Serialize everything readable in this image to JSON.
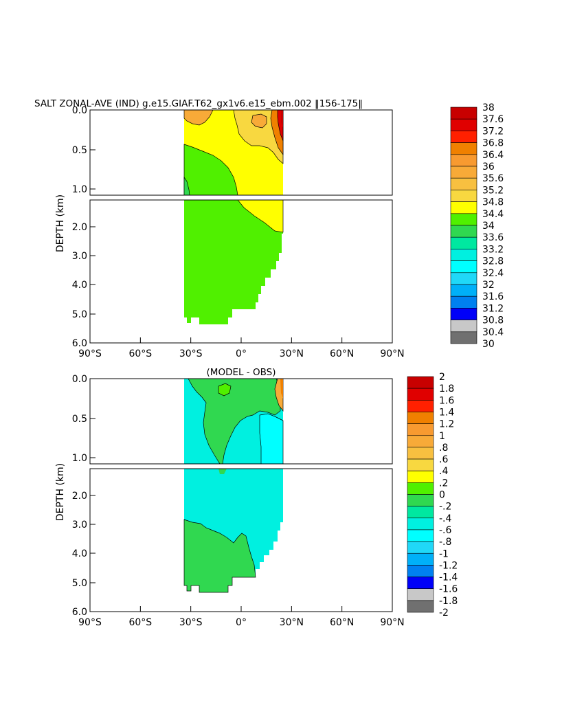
{
  "chart_data": [
    {
      "type": "heatmap",
      "title": "SALT ZONAL-AVE (IND) g.e15.GIAF.T62_gx1v6.e15_ebm.002 ‖156-175‖",
      "ylabel": "DEPTH (km)",
      "x_ticks": [
        "90°S",
        "60°S",
        "30°S",
        "0°",
        "30°N",
        "60°N",
        "90°N"
      ],
      "y_ticks_upper": [
        "0.0",
        "0.5",
        "1.0"
      ],
      "y_ticks_lower": [
        "2.0",
        "3.0",
        "4.0",
        "5.0",
        "6.0"
      ],
      "xlim": [
        -90,
        90
      ],
      "ylim_km": [
        0,
        6
      ],
      "colorbar_labels": [
        "38",
        "37.6",
        "37.2",
        "36.8",
        "36.4",
        "36",
        "35.6",
        "35.2",
        "34.8",
        "34.4",
        "34",
        "33.6",
        "33.2",
        "32.8",
        "32.4",
        "32",
        "31.6",
        "31.2",
        "30.8",
        "30.4",
        "30"
      ],
      "colorbar_colors": [
        "#c80000",
        "#e00000",
        "#ff2000",
        "#f08000",
        "#f89a30",
        "#f8aa38",
        "#f8c040",
        "#f8d840",
        "#ffff00",
        "#50f000",
        "#30d850",
        "#00e8a0",
        "#00f0e0",
        "#00ffff",
        "#20d8f8",
        "#00b0f8",
        "#0080f0",
        "#0000f8",
        "#9010d8",
        "#e800d8",
        "#c8c8c8",
        "#707070"
      ],
      "regions": [
        {
          "band": "upper",
          "value_range": "35.2-34.8",
          "color": "#ffff00",
          "lat_range": [
            -34,
            25
          ],
          "depth_km": [
            0,
            1.1
          ]
        },
        {
          "band": "upper",
          "value_range": "35.6-35.2",
          "color": "#f8d840",
          "lat_range": [
            -2,
            25
          ],
          "depth_km": [
            0,
            0.5
          ]
        },
        {
          "band": "upper",
          "value_range": "36-35.6",
          "color": "#f8aa38",
          "lat_range": [
            -34,
            -24
          ],
          "depth_km": [
            0,
            0.08
          ]
        },
        {
          "band": "upper",
          "value_range": "37.2-38",
          "color": "#c80000",
          "lat_range": [
            21,
            25
          ],
          "depth_km": [
            0,
            0.2
          ]
        },
        {
          "band": "upper",
          "value_range": "34.8-34.4",
          "color": "#50f000",
          "lat_range": [
            -34,
            -1
          ],
          "depth_km": [
            0.4,
            1.1
          ]
        },
        {
          "band": "lower",
          "value_range": "35.2-34.8",
          "color": "#ffff00",
          "lat_range": [
            -1,
            25
          ],
          "depth_km": [
            1.1,
            2.2
          ]
        },
        {
          "band": "lower",
          "value_range": "34.8-34.4",
          "color": "#50f000",
          "lat_range": [
            -34,
            25
          ],
          "depth_km": [
            1.1,
            5.4
          ]
        }
      ]
    },
    {
      "type": "heatmap",
      "title": "(MODEL - OBS)",
      "ylabel": "DEPTH (km)",
      "x_ticks": [
        "90°S",
        "60°S",
        "30°S",
        "0°",
        "30°N",
        "60°N",
        "90°N"
      ],
      "y_ticks_upper": [
        "0.0",
        "0.5",
        "1.0"
      ],
      "y_ticks_lower": [
        "2.0",
        "3.0",
        "4.0",
        "5.0",
        "6.0"
      ],
      "xlim": [
        -90,
        90
      ],
      "ylim_km": [
        0,
        6
      ],
      "colorbar_labels": [
        "2",
        "1.8",
        "1.6",
        "1.4",
        "1.2",
        "1",
        ".8",
        ".6",
        ".4",
        ".2",
        "0",
        "-.2",
        "-.4",
        "-.6",
        "-.8",
        "-1",
        "-1.2",
        "-1.4",
        "-1.6",
        "-1.8",
        "-2"
      ],
      "colorbar_colors": [
        "#c80000",
        "#e00000",
        "#ff2000",
        "#f08000",
        "#f89a30",
        "#f8aa38",
        "#f8c040",
        "#f8d840",
        "#ffff00",
        "#50f000",
        "#30d850",
        "#00e8a0",
        "#00f0e0",
        "#00ffff",
        "#20d8f8",
        "#00b0f8",
        "#0080f0",
        "#0000f8",
        "#9010d8",
        "#e800d8",
        "#c8c8c8",
        "#707070"
      ],
      "regions": [
        {
          "band": "upper",
          "value_range": "0 to -0.2",
          "color": "#00f0e0",
          "lat_range": [
            -34,
            25
          ],
          "depth_km": [
            0,
            1.1
          ]
        },
        {
          "band": "upper",
          "value_range": "0.2 to 0",
          "color": "#30d850",
          "lat_range": [
            -26,
            4
          ],
          "depth_km": [
            0,
            1.1
          ]
        },
        {
          "band": "upper",
          "value_range": "0.6 to 1.6",
          "color": "#f8aa38",
          "lat_range": [
            22,
            25
          ],
          "depth_km": [
            0,
            0.15
          ]
        },
        {
          "band": "upper",
          "value_range": "-0.2 to -0.4",
          "color": "#00ffff",
          "lat_range": [
            4,
            25
          ],
          "depth_km": [
            0.1,
            1.1
          ]
        },
        {
          "band": "lower",
          "value_range": "0 to -0.2",
          "color": "#00f0e0",
          "lat_range": [
            -34,
            25
          ],
          "depth_km": [
            1.1,
            4.8
          ]
        },
        {
          "band": "lower",
          "value_range": "0.2 to 0",
          "color": "#30d850",
          "lat_range": [
            -34,
            9
          ],
          "depth_km": [
            2.9,
            5.4
          ]
        }
      ]
    }
  ]
}
